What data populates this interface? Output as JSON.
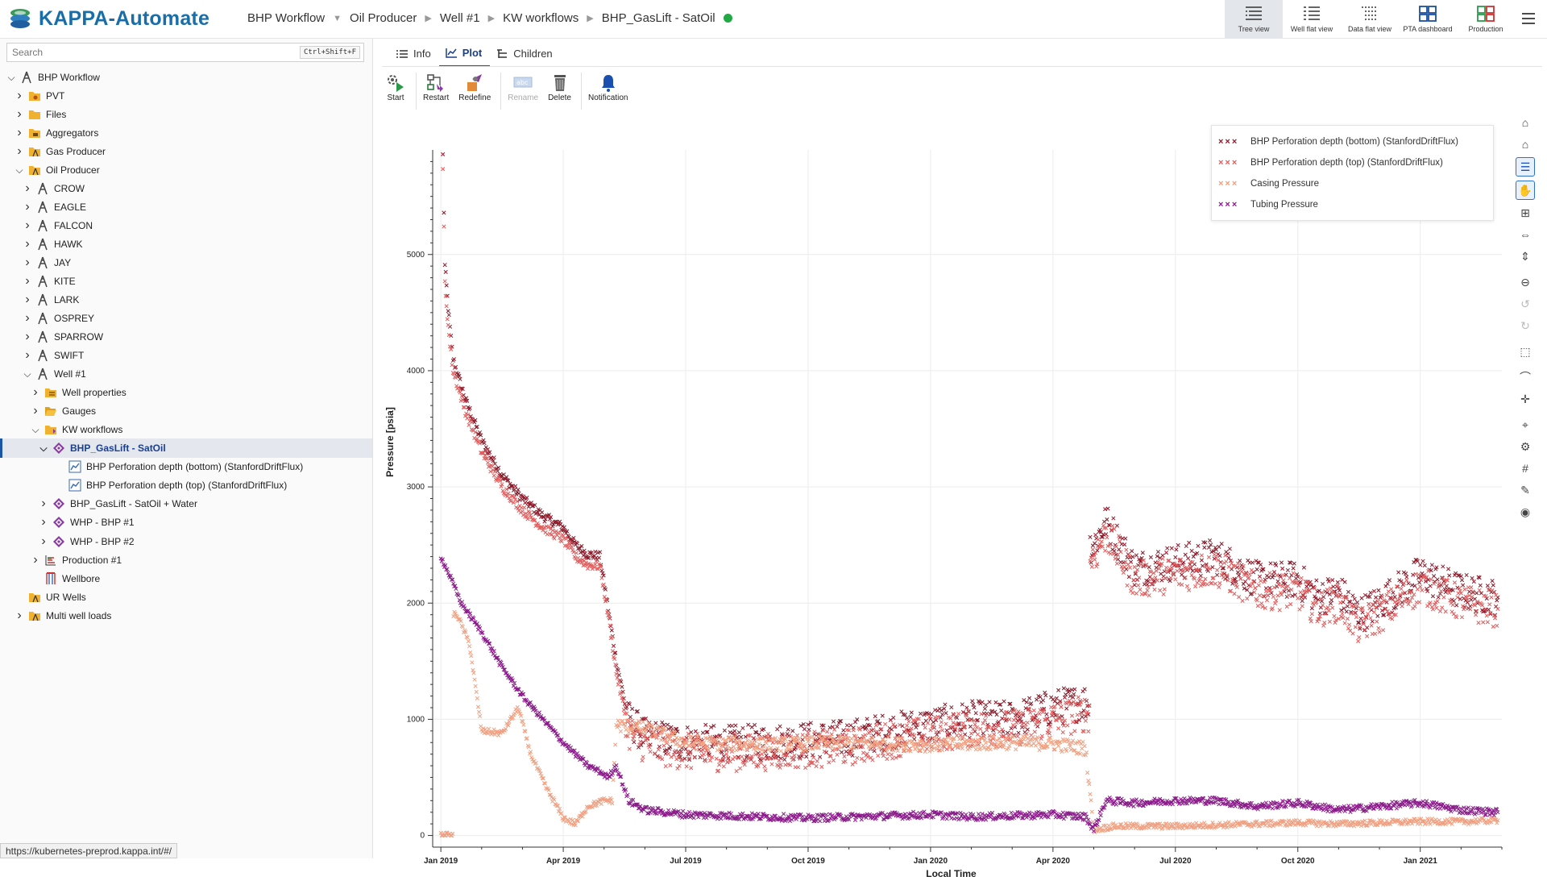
{
  "app": {
    "title": "KAPPA-Automate"
  },
  "breadcrumb": [
    "BHP Workflow",
    "Oil Producer",
    "Well #1",
    "KW workflows",
    "BHP_GasLift - SatOil"
  ],
  "views": [
    {
      "label": "Tree view",
      "icon": "tree-view-icon"
    },
    {
      "label": "Well flat view",
      "icon": "well-flat-view-icon"
    },
    {
      "label": "Data flat view",
      "icon": "data-flat-view-icon"
    },
    {
      "label": "PTA dashboard",
      "icon": "pta-dashboard-icon"
    },
    {
      "label": "Production",
      "icon": "production-icon"
    }
  ],
  "search": {
    "placeholder": "Search",
    "shortcut": "Ctrl+Shift+F"
  },
  "tree": [
    {
      "label": "BHP Workflow",
      "depth": 0,
      "exp": "open",
      "icon": "rig"
    },
    {
      "label": "PVT",
      "depth": 1,
      "exp": "closed",
      "icon": "folder-pvt"
    },
    {
      "label": "Files",
      "depth": 1,
      "exp": "closed",
      "icon": "folder"
    },
    {
      "label": "Aggregators",
      "depth": 1,
      "exp": "closed",
      "icon": "folder-agg"
    },
    {
      "label": "Gas Producer",
      "depth": 1,
      "exp": "closed",
      "icon": "folder-well"
    },
    {
      "label": "Oil Producer",
      "depth": 1,
      "exp": "open",
      "icon": "folder-well"
    },
    {
      "label": "CROW",
      "depth": 2,
      "exp": "closed",
      "icon": "rig"
    },
    {
      "label": "EAGLE",
      "depth": 2,
      "exp": "closed",
      "icon": "rig"
    },
    {
      "label": "FALCON",
      "depth": 2,
      "exp": "closed",
      "icon": "rig"
    },
    {
      "label": "HAWK",
      "depth": 2,
      "exp": "closed",
      "icon": "rig"
    },
    {
      "label": "JAY",
      "depth": 2,
      "exp": "closed",
      "icon": "rig"
    },
    {
      "label": "KITE",
      "depth": 2,
      "exp": "closed",
      "icon": "rig"
    },
    {
      "label": "LARK",
      "depth": 2,
      "exp": "closed",
      "icon": "rig"
    },
    {
      "label": "OSPREY",
      "depth": 2,
      "exp": "closed",
      "icon": "rig"
    },
    {
      "label": "SPARROW",
      "depth": 2,
      "exp": "closed",
      "icon": "rig"
    },
    {
      "label": "SWIFT",
      "depth": 2,
      "exp": "closed",
      "icon": "rig"
    },
    {
      "label": "Well #1",
      "depth": 2,
      "exp": "open",
      "icon": "rig"
    },
    {
      "label": "Well properties",
      "depth": 3,
      "exp": "closed",
      "icon": "folder-props"
    },
    {
      "label": "Gauges",
      "depth": 3,
      "exp": "closed",
      "icon": "folder-open"
    },
    {
      "label": "KW workflows",
      "depth": 3,
      "exp": "open",
      "icon": "folder-kw"
    },
    {
      "label": "BHP_GasLift - SatOil",
      "depth": 4,
      "exp": "open",
      "icon": "workflow",
      "selected": true
    },
    {
      "label": "BHP Perforation depth (bottom) (StanfordDriftFlux)",
      "depth": 5,
      "exp": "none",
      "icon": "plot"
    },
    {
      "label": "BHP Perforation depth (top) (StanfordDriftFlux)",
      "depth": 5,
      "exp": "none",
      "icon": "plot"
    },
    {
      "label": "BHP_GasLift - SatOil + Water",
      "depth": 4,
      "exp": "closed",
      "icon": "workflow"
    },
    {
      "label": "WHP - BHP #1",
      "depth": 4,
      "exp": "closed",
      "icon": "workflow"
    },
    {
      "label": "WHP - BHP #2",
      "depth": 4,
      "exp": "closed",
      "icon": "workflow"
    },
    {
      "label": "Production #1",
      "depth": 3,
      "exp": "closed",
      "icon": "production"
    },
    {
      "label": "Wellbore",
      "depth": 3,
      "exp": "none",
      "icon": "wellbore"
    },
    {
      "label": "UR Wells",
      "depth": 1,
      "exp": "none",
      "icon": "folder-well"
    },
    {
      "label": "Multi well loads",
      "depth": 1,
      "exp": "closed",
      "icon": "folder-well"
    }
  ],
  "status_url": "https://kubernetes-preprod.kappa.int/#/",
  "tabs": [
    {
      "label": "Info",
      "icon": "list-icon"
    },
    {
      "label": "Plot",
      "icon": "line-chart-icon",
      "active": true
    },
    {
      "label": "Children",
      "icon": "children-icon"
    }
  ],
  "toolbar": [
    {
      "label": "Start",
      "icon": "start-icon",
      "enabled": true
    },
    {
      "label": "Restart",
      "icon": "restart-icon",
      "enabled": true
    },
    {
      "label": "Redefine",
      "icon": "redefine-icon",
      "enabled": true
    },
    {
      "label": "Rename",
      "icon": "rename-icon",
      "enabled": false
    },
    {
      "label": "Delete",
      "icon": "delete-icon",
      "enabled": true
    },
    {
      "label": "Notification",
      "icon": "bell-icon",
      "enabled": true
    }
  ],
  "right_tools": [
    "home-icon",
    "home-alt-icon",
    "legend-icon",
    "pan-icon",
    "zoom-box-icon",
    "zoom-x-icon",
    "zoom-y-icon",
    "zoom-out-icon",
    "undo-zoom-icon",
    "redo-zoom-icon",
    "select-icon",
    "curve-icon",
    "crosshair-icon",
    "cursor-icon",
    "settings-icon",
    "grid-icon",
    "brush-icon",
    "camera-icon"
  ],
  "chart_data": {
    "type": "scatter",
    "xlabel": "Local Time",
    "ylabel": "Pressure [psia]",
    "ylim": [
      -100,
      5900
    ],
    "yticks": [
      0,
      1000,
      2000,
      3000,
      4000,
      5000
    ],
    "xticks": [
      "Jan 2019",
      "Apr 2019",
      "Jul 2019",
      "Oct 2019",
      "Jan 2020",
      "Apr 2020",
      "Jul 2020",
      "Oct 2020",
      "Jan 2021"
    ],
    "xlim_months": [
      -0.2,
      26.0
    ],
    "grid": true,
    "legend_position": "top-right",
    "series": [
      {
        "name": "BHP Perforation depth (bottom) (StanfordDriftFlux)",
        "color": "#8b1a2a",
        "points": [
          [
            0.05,
            5850
          ],
          [
            0.1,
            4900
          ],
          [
            0.2,
            4450
          ],
          [
            0.3,
            4100
          ],
          [
            0.6,
            3750
          ],
          [
            1.0,
            3400
          ],
          [
            1.5,
            3100
          ],
          [
            2.0,
            2900
          ],
          [
            2.5,
            2750
          ],
          [
            3.0,
            2650
          ],
          [
            3.3,
            2500
          ],
          [
            3.6,
            2420
          ],
          [
            3.9,
            2400
          ],
          [
            4.1,
            1950
          ],
          [
            4.3,
            1500
          ],
          [
            4.6,
            1000
          ],
          [
            5.0,
            850
          ],
          [
            6,
            800
          ],
          [
            7,
            790
          ],
          [
            8,
            800
          ],
          [
            9,
            820
          ],
          [
            10,
            840
          ],
          [
            11,
            900
          ],
          [
            12,
            950
          ],
          [
            13,
            1000
          ],
          [
            14,
            1000
          ],
          [
            15,
            1100
          ],
          [
            15.8,
            1150
          ],
          [
            16.0,
            2500
          ],
          [
            16.3,
            2700
          ],
          [
            17,
            2300
          ],
          [
            18,
            2350
          ],
          [
            19,
            2400
          ],
          [
            20,
            2200
          ],
          [
            21,
            2200
          ],
          [
            21.5,
            2050
          ],
          [
            22,
            2100
          ],
          [
            22.5,
            1900
          ],
          [
            23,
            2000
          ],
          [
            24,
            2250
          ],
          [
            25,
            2100
          ],
          [
            25.9,
            2050
          ]
        ]
      },
      {
        "name": "BHP Perforation depth (top) (StanfordDriftFlux)",
        "color": "#e05c5c",
        "points": [
          [
            0.05,
            5700
          ],
          [
            0.1,
            4750
          ],
          [
            0.2,
            4300
          ],
          [
            0.3,
            4000
          ],
          [
            0.6,
            3650
          ],
          [
            1.0,
            3300
          ],
          [
            1.5,
            3000
          ],
          [
            2.0,
            2800
          ],
          [
            2.5,
            2650
          ],
          [
            3.0,
            2550
          ],
          [
            3.3,
            2400
          ],
          [
            3.6,
            2330
          ],
          [
            3.9,
            2320
          ],
          [
            4.1,
            1900
          ],
          [
            4.3,
            1400
          ],
          [
            4.6,
            900
          ],
          [
            5.0,
            780
          ],
          [
            6,
            720
          ],
          [
            7,
            710
          ],
          [
            8,
            720
          ],
          [
            9,
            740
          ],
          [
            10,
            760
          ],
          [
            11,
            820
          ],
          [
            12,
            870
          ],
          [
            13,
            920
          ],
          [
            14,
            920
          ],
          [
            15,
            1000
          ],
          [
            15.8,
            1050
          ],
          [
            16.0,
            2400
          ],
          [
            16.3,
            2600
          ],
          [
            17,
            2200
          ],
          [
            18,
            2250
          ],
          [
            19,
            2300
          ],
          [
            20,
            2100
          ],
          [
            21,
            2100
          ],
          [
            21.5,
            1950
          ],
          [
            22,
            2000
          ],
          [
            22.5,
            1800
          ],
          [
            23,
            1900
          ],
          [
            24,
            2150
          ],
          [
            25,
            2000
          ],
          [
            25.9,
            1950
          ]
        ]
      },
      {
        "name": "Casing Pressure",
        "color": "#f0a080",
        "points": [
          [
            0.0,
            0
          ],
          [
            0.2,
            0
          ],
          [
            0.4,
            1900
          ],
          [
            0.7,
            1650
          ],
          [
            1.0,
            900
          ],
          [
            1.5,
            880
          ],
          [
            1.9,
            1100
          ],
          [
            2.2,
            700
          ],
          [
            2.6,
            400
          ],
          [
            3.0,
            150
          ],
          [
            3.3,
            100
          ],
          [
            3.6,
            250
          ],
          [
            4.0,
            300
          ],
          [
            4.2,
            300
          ],
          [
            4.3,
            950
          ],
          [
            5,
            920
          ],
          [
            6,
            800
          ],
          [
            7,
            790
          ],
          [
            8,
            780
          ],
          [
            9,
            790
          ],
          [
            10,
            800
          ],
          [
            11,
            790
          ],
          [
            12,
            780
          ],
          [
            13,
            790
          ],
          [
            14,
            800
          ],
          [
            15,
            790
          ],
          [
            15.8,
            750
          ],
          [
            16.0,
            50
          ],
          [
            16.5,
            80
          ],
          [
            17,
            80
          ],
          [
            18,
            80
          ],
          [
            19,
            90
          ],
          [
            20,
            100
          ],
          [
            21,
            110
          ],
          [
            22,
            100
          ],
          [
            23,
            110
          ],
          [
            24,
            120
          ],
          [
            25,
            120
          ],
          [
            25.9,
            130
          ]
        ]
      },
      {
        "name": "Tubing Pressure",
        "color": "#8a1a8a",
        "points": [
          [
            0.0,
            2400
          ],
          [
            0.2,
            2250
          ],
          [
            0.5,
            2000
          ],
          [
            1.0,
            1750
          ],
          [
            1.5,
            1450
          ],
          [
            2.0,
            1200
          ],
          [
            2.5,
            1000
          ],
          [
            3.0,
            800
          ],
          [
            3.3,
            700
          ],
          [
            3.6,
            600
          ],
          [
            3.9,
            550
          ],
          [
            4.1,
            500
          ],
          [
            4.3,
            600
          ],
          [
            4.6,
            300
          ],
          [
            5,
            220
          ],
          [
            6,
            180
          ],
          [
            7,
            170
          ],
          [
            8,
            160
          ],
          [
            9,
            150
          ],
          [
            10,
            160
          ],
          [
            11,
            170
          ],
          [
            12,
            180
          ],
          [
            13,
            160
          ],
          [
            14,
            170
          ],
          [
            15,
            180
          ],
          [
            15.8,
            160
          ],
          [
            16.0,
            50
          ],
          [
            16.3,
            300
          ],
          [
            17,
            280
          ],
          [
            18,
            300
          ],
          [
            19,
            300
          ],
          [
            20,
            250
          ],
          [
            21,
            280
          ],
          [
            22,
            220
          ],
          [
            23,
            250
          ],
          [
            24,
            280
          ],
          [
            25,
            220
          ],
          [
            25.9,
            200
          ]
        ]
      }
    ]
  }
}
